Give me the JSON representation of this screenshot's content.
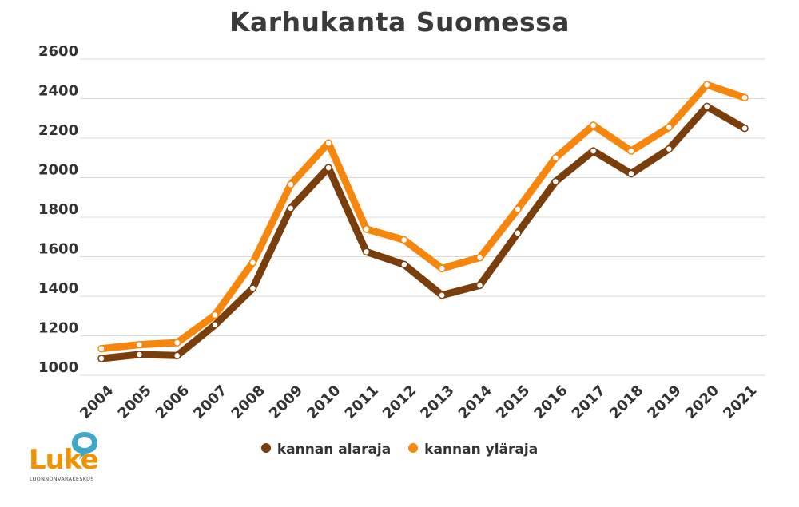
{
  "chart_data": {
    "type": "line",
    "title": "Karhukanta Suomessa",
    "xlabel": "",
    "ylabel": "",
    "ylim": [
      1000,
      2600
    ],
    "yticks": [
      1000,
      1200,
      1400,
      1600,
      1800,
      2000,
      2200,
      2400,
      2600
    ],
    "grid": true,
    "legend_position": "bottom",
    "x": [
      "2004",
      "2005",
      "2006",
      "2007",
      "2008",
      "2009",
      "2010",
      "2011",
      "2012",
      "2013",
      "2014",
      "2015",
      "2016",
      "2017",
      "2018",
      "2019",
      "2020",
      "2021"
    ],
    "series": [
      {
        "name": "kannan alaraja",
        "color": "#7a3e0c",
        "values": [
          1085,
          1105,
          1100,
          1255,
          1440,
          1845,
          2050,
          1625,
          1560,
          1405,
          1455,
          1720,
          1980,
          2135,
          2020,
          2145,
          2360,
          2250
        ]
      },
      {
        "name": "kannan yläraja",
        "color": "#f7860c",
        "values": [
          1135,
          1155,
          1165,
          1305,
          1570,
          1965,
          2175,
          1740,
          1685,
          1540,
          1595,
          1840,
          2100,
          2265,
          2135,
          2255,
          2470,
          2405
        ]
      }
    ]
  },
  "logo": {
    "name": "Luke",
    "subtitle": "LUONNONVARAKESKUS"
  },
  "colors": {
    "grid": "#d9d9d9",
    "text": "#333333",
    "marker_fill": "#ffffff"
  }
}
